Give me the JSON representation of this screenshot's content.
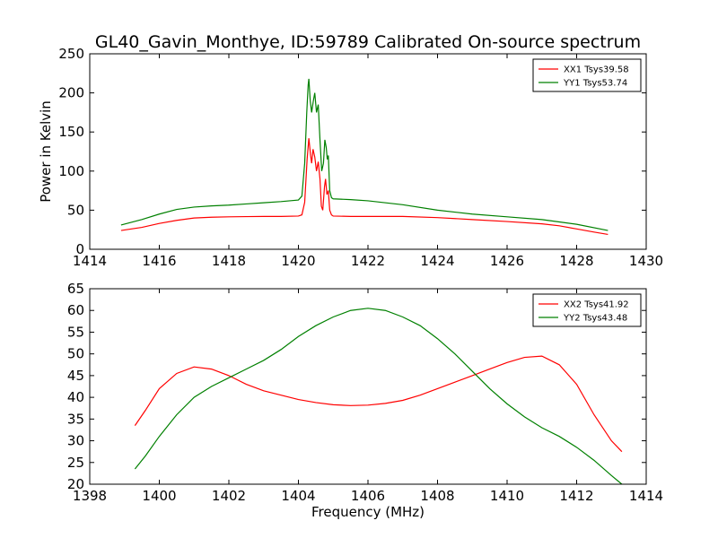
{
  "chart_data": [
    {
      "type": "line",
      "title": "GL40_Gavin_Monthye, ID:59789 Calibrated On-source spectrum",
      "xlabel": "",
      "ylabel": "Power in Kelvin",
      "xlim": [
        1414,
        1430
      ],
      "ylim": [
        0,
        250
      ],
      "xticks": [
        1414,
        1416,
        1418,
        1420,
        1422,
        1424,
        1426,
        1428,
        1430
      ],
      "yticks": [
        0,
        50,
        100,
        150,
        200,
        250
      ],
      "grid": false,
      "legend_position": "top-right",
      "series": [
        {
          "name": "XX1 Tsys39.58",
          "color": "#ff0000",
          "points": [
            [
              1414.9,
              24
            ],
            [
              1415.5,
              28
            ],
            [
              1416.0,
              33
            ],
            [
              1416.5,
              37
            ],
            [
              1417.0,
              40
            ],
            [
              1417.5,
              41
            ],
            [
              1418.0,
              41.5
            ],
            [
              1418.5,
              41.8
            ],
            [
              1419.0,
              42
            ],
            [
              1419.5,
              42
            ],
            [
              1420.0,
              42.5
            ],
            [
              1420.1,
              44
            ],
            [
              1420.18,
              60
            ],
            [
              1420.25,
              115
            ],
            [
              1420.3,
              142
            ],
            [
              1420.35,
              120
            ],
            [
              1420.38,
              110
            ],
            [
              1420.42,
              128
            ],
            [
              1420.47,
              118
            ],
            [
              1420.52,
              100
            ],
            [
              1420.57,
              112
            ],
            [
              1420.62,
              90
            ],
            [
              1420.66,
              55
            ],
            [
              1420.7,
              50
            ],
            [
              1420.75,
              80
            ],
            [
              1420.78,
              90
            ],
            [
              1420.82,
              70
            ],
            [
              1420.86,
              75
            ],
            [
              1420.9,
              50
            ],
            [
              1420.95,
              44
            ],
            [
              1421.0,
              42.5
            ],
            [
              1421.5,
              42
            ],
            [
              1422.0,
              42
            ],
            [
              1423.0,
              42
            ],
            [
              1424.0,
              40.5
            ],
            [
              1425.0,
              38
            ],
            [
              1426.0,
              35.5
            ],
            [
              1427.0,
              32.5
            ],
            [
              1427.5,
              30
            ],
            [
              1428.0,
              26
            ],
            [
              1428.5,
              22
            ],
            [
              1428.9,
              19
            ]
          ]
        },
        {
          "name": "YY1 Tsys53.74",
          "color": "#008000",
          "points": [
            [
              1414.9,
              31
            ],
            [
              1415.5,
              38
            ],
            [
              1416.0,
              45
            ],
            [
              1416.5,
              51
            ],
            [
              1417.0,
              54
            ],
            [
              1417.5,
              55.5
            ],
            [
              1418.0,
              56.5
            ],
            [
              1418.5,
              58
            ],
            [
              1419.0,
              59.5
            ],
            [
              1419.5,
              61
            ],
            [
              1420.0,
              63
            ],
            [
              1420.1,
              68
            ],
            [
              1420.18,
              110
            ],
            [
              1420.24,
              175
            ],
            [
              1420.28,
              210
            ],
            [
              1420.3,
              218
            ],
            [
              1420.34,
              190
            ],
            [
              1420.38,
              175
            ],
            [
              1420.43,
              190
            ],
            [
              1420.47,
              200
            ],
            [
              1420.52,
              175
            ],
            [
              1420.57,
              185
            ],
            [
              1420.62,
              140
            ],
            [
              1420.67,
              100
            ],
            [
              1420.72,
              110
            ],
            [
              1420.76,
              140
            ],
            [
              1420.8,
              130
            ],
            [
              1420.83,
              115
            ],
            [
              1420.86,
              120
            ],
            [
              1420.9,
              75
            ],
            [
              1420.95,
              66
            ],
            [
              1421.0,
              64.5
            ],
            [
              1421.5,
              63.5
            ],
            [
              1422.0,
              62
            ],
            [
              1423.0,
              57
            ],
            [
              1424.0,
              50
            ],
            [
              1425.0,
              45
            ],
            [
              1426.0,
              41.5
            ],
            [
              1427.0,
              38
            ],
            [
              1428.0,
              32
            ],
            [
              1428.9,
              24
            ]
          ]
        }
      ]
    },
    {
      "type": "line",
      "title": "",
      "xlabel": "Frequency (MHz)",
      "ylabel": "",
      "xlim": [
        1398,
        1414
      ],
      "ylim": [
        20,
        65
      ],
      "xticks": [
        1398,
        1400,
        1402,
        1404,
        1406,
        1408,
        1410,
        1412,
        1414
      ],
      "yticks": [
        20,
        25,
        30,
        35,
        40,
        45,
        50,
        55,
        60,
        65
      ],
      "grid": false,
      "legend_position": "top-right",
      "series": [
        {
          "name": "XX2 Tsys41.92",
          "color": "#ff0000",
          "points": [
            [
              1399.3,
              33.5
            ],
            [
              1399.6,
              37
            ],
            [
              1400.0,
              42
            ],
            [
              1400.5,
              45.5
            ],
            [
              1401.0,
              47
            ],
            [
              1401.5,
              46.5
            ],
            [
              1402.0,
              45
            ],
            [
              1402.5,
              43
            ],
            [
              1403.0,
              41.5
            ],
            [
              1403.5,
              40.5
            ],
            [
              1404.0,
              39.5
            ],
            [
              1404.5,
              38.8
            ],
            [
              1405.0,
              38.3
            ],
            [
              1405.5,
              38.1
            ],
            [
              1406.0,
              38.2
            ],
            [
              1406.5,
              38.6
            ],
            [
              1407.0,
              39.3
            ],
            [
              1407.5,
              40.5
            ],
            [
              1408.0,
              42
            ],
            [
              1408.5,
              43.5
            ],
            [
              1409.0,
              45
            ],
            [
              1409.5,
              46.5
            ],
            [
              1410.0,
              48
            ],
            [
              1410.5,
              49.2
            ],
            [
              1411.0,
              49.5
            ],
            [
              1411.5,
              47.5
            ],
            [
              1412.0,
              43
            ],
            [
              1412.5,
              36
            ],
            [
              1413.0,
              30
            ],
            [
              1413.3,
              27.5
            ]
          ]
        },
        {
          "name": "YY2 Tsys43.48",
          "color": "#008000",
          "points": [
            [
              1399.3,
              23.5
            ],
            [
              1399.6,
              26.5
            ],
            [
              1400.0,
              31
            ],
            [
              1400.5,
              36
            ],
            [
              1401.0,
              40
            ],
            [
              1401.5,
              42.5
            ],
            [
              1402.0,
              44.5
            ],
            [
              1402.5,
              46.5
            ],
            [
              1403.0,
              48.5
            ],
            [
              1403.5,
              51
            ],
            [
              1404.0,
              54
            ],
            [
              1404.5,
              56.5
            ],
            [
              1405.0,
              58.5
            ],
            [
              1405.5,
              60
            ],
            [
              1406.0,
              60.5
            ],
            [
              1406.5,
              60
            ],
            [
              1407.0,
              58.5
            ],
            [
              1407.5,
              56.5
            ],
            [
              1408.0,
              53.5
            ],
            [
              1408.5,
              50
            ],
            [
              1409.0,
              46
            ],
            [
              1409.5,
              42
            ],
            [
              1410.0,
              38.5
            ],
            [
              1410.5,
              35.5
            ],
            [
              1411.0,
              33
            ],
            [
              1411.5,
              31
            ],
            [
              1412.0,
              28.5
            ],
            [
              1412.5,
              25.5
            ],
            [
              1413.0,
              22
            ],
            [
              1413.3,
              20
            ]
          ]
        }
      ]
    }
  ]
}
